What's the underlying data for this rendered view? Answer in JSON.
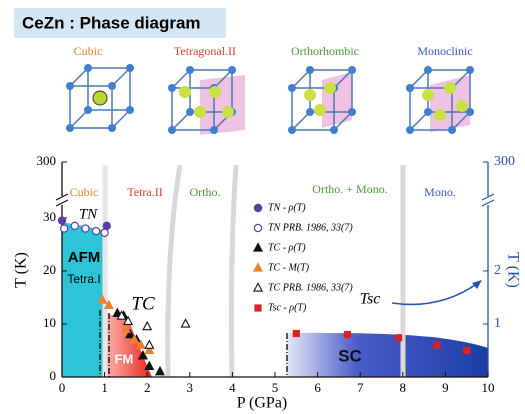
{
  "chart_data": {
    "type": "scatter",
    "title": "CeZn : Phase diagram",
    "structures": [
      "Cubic",
      "Tetragonal.II",
      "Orthorhombic",
      "Monoclinic"
    ],
    "phases": [
      "Cubic",
      "Tetra.II",
      "Ortho.",
      "Ortho. + Mono.",
      "Mono."
    ],
    "annotations": [
      "AFM",
      "Tetra.I",
      "FM",
      "SC",
      "TN",
      "TC",
      "Tsc"
    ],
    "xlabel": "P (GPa)",
    "ylabel": "T (K)",
    "y2label": "T (K)",
    "xlim": [
      0,
      10
    ],
    "xticks": [
      0,
      1,
      2,
      3,
      4,
      5,
      6,
      7,
      8,
      9,
      10
    ],
    "ylim": [
      0,
      33
    ],
    "yticks": [
      0,
      10,
      20,
      30
    ],
    "ybreak_tick": 300,
    "y2lim": [
      0,
      3.3
    ],
    "y2ticks": [
      1,
      2
    ],
    "y2break_tick": 300,
    "series": [
      {
        "name": "TN - ρ(T)",
        "color": "#5a3fa6",
        "marker": "circle",
        "x": [
          0.0,
          1.05
        ],
        "values": [
          29.5,
          28.5
        ]
      },
      {
        "name": "TN PRB. 1986, 33(7)",
        "color": "#5a3fa6",
        "marker": "circle-open",
        "x": [
          0.05,
          0.3,
          0.55,
          0.8,
          1.0
        ],
        "values": [
          28,
          28.5,
          28,
          27.5,
          27.2
        ]
      },
      {
        "name": "TC - ρ(T)",
        "color": "#111111",
        "marker": "triangle",
        "x": [
          1.3,
          1.45,
          1.6,
          1.75,
          1.9,
          2.05,
          2.3
        ],
        "values": [
          12,
          11.5,
          8,
          7,
          4,
          2,
          1
        ]
      },
      {
        "name": "TC - M(T)",
        "color": "#f08030",
        "marker": "triangle",
        "x": [
          0.95,
          1.1,
          1.5,
          1.7,
          1.85,
          2.05
        ],
        "values": [
          14.5,
          13.5,
          9,
          7,
          6,
          5
        ]
      },
      {
        "name": "TC PRB. 1986, 33(7)",
        "color": "#111111",
        "marker": "triangle-open",
        "x": [
          1.4,
          1.55,
          2.0,
          2.05,
          2.9
        ],
        "values": [
          11.5,
          10.5,
          9.5,
          6,
          10
        ]
      },
      {
        "name": "Tsc - ρ(T)",
        "color": "#e02020",
        "marker": "square",
        "axis": "y2",
        "x": [
          5.5,
          6.7,
          7.9,
          8.8,
          9.5
        ],
        "values": [
          0.82,
          0.8,
          0.74,
          0.6,
          0.5
        ]
      }
    ]
  }
}
